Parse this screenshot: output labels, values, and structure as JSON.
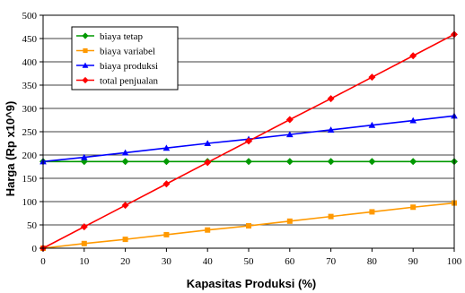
{
  "chart_data": {
    "type": "line",
    "title": "",
    "xlabel": "Kapasitas Produksi (%)",
    "ylabel": "Harga (Rp x10^9)",
    "x": [
      0,
      10,
      20,
      30,
      40,
      50,
      60,
      70,
      80,
      90,
      100
    ],
    "xlim": [
      0,
      100
    ],
    "ylim": [
      0,
      500
    ],
    "xticks": [
      "0",
      "10",
      "20",
      "30",
      "40",
      "50",
      "60",
      "70",
      "80",
      "90",
      "100"
    ],
    "yticks": [
      "0",
      "50",
      "100",
      "150",
      "200",
      "250",
      "300",
      "350",
      "400",
      "450",
      "500"
    ],
    "grid": "horizontal",
    "legend_position": "top-left",
    "series": [
      {
        "name": "biaya tetap",
        "color": "#009900",
        "marker": "diamond",
        "values": [
          186,
          186,
          186,
          186,
          186,
          186,
          186,
          186,
          186,
          186,
          186
        ]
      },
      {
        "name": "biaya variabel",
        "color": "#FF9900",
        "marker": "square",
        "values": [
          0,
          10,
          19,
          29,
          39,
          48,
          58,
          68,
          78,
          88,
          97
        ]
      },
      {
        "name": "biaya produksi",
        "color": "#0000FF",
        "marker": "triangle",
        "values": [
          186,
          195,
          205,
          215,
          225,
          234,
          244,
          254,
          264,
          274,
          284
        ]
      },
      {
        "name": "total penjualan",
        "color": "#FF0000",
        "marker": "diamond",
        "values": [
          0,
          46,
          92,
          138,
          184,
          230,
          276,
          321,
          367,
          413,
          459
        ]
      }
    ]
  }
}
